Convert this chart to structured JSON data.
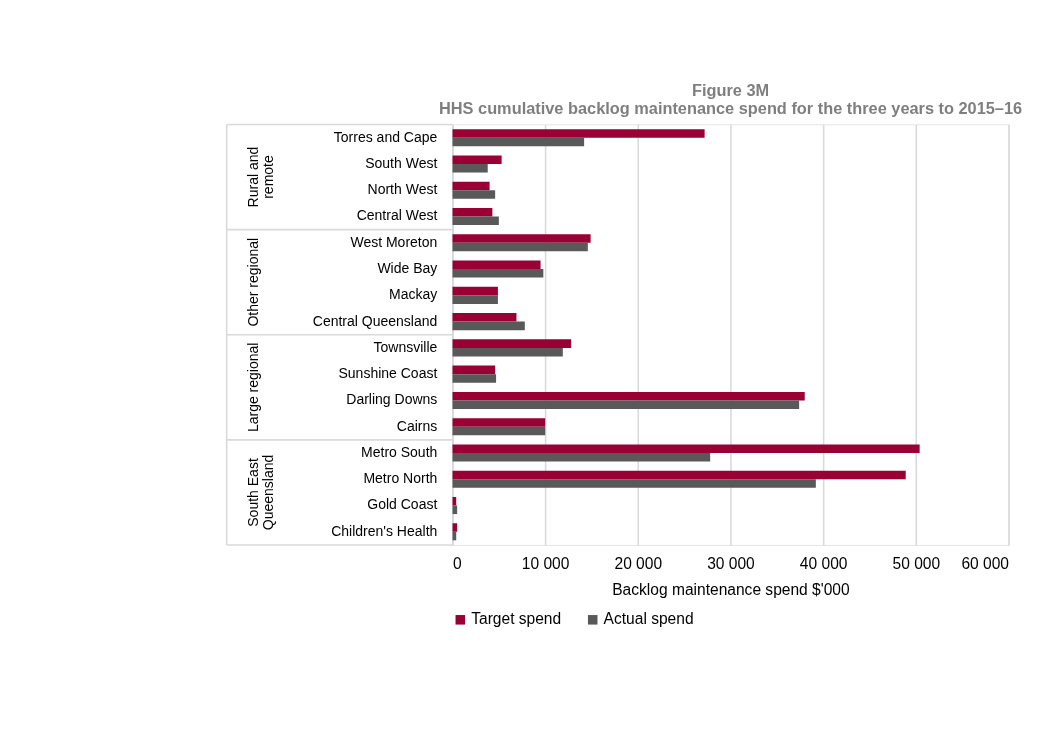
{
  "chart_data": {
    "type": "bar",
    "orientation": "horizontal",
    "title": "Figure 3M",
    "subtitle": "HHS cumulative backlog maintenance spend for the three years to 2015–16",
    "xlabel": "Backlog maintenance spend $'000",
    "categories": [
      "Torres and Cape",
      "South West",
      "North West",
      "Central West",
      "West Moreton",
      "Wide Bay",
      "Mackay",
      "Central Queensland",
      "Townsville",
      "Sunshine Coast",
      "Darling Downs",
      "Cairns",
      "Metro South",
      "Metro North",
      "Gold Coast",
      "Children's Health"
    ],
    "series": [
      {
        "name": "Target spend",
        "color": "#990033",
        "values": [
          27200,
          5300,
          4000,
          4300,
          14900,
          9500,
          4900,
          6900,
          12800,
          4600,
          38000,
          10000,
          50400,
          48900,
          400,
          500
        ]
      },
      {
        "name": "Actual spend",
        "color": "#595959",
        "values": [
          14200,
          3800,
          4600,
          5000,
          14600,
          9800,
          4900,
          7800,
          11900,
          4700,
          37400,
          10000,
          27800,
          39200,
          500,
          400
        ]
      }
    ],
    "annotations": [
      "Rural and\nremote",
      "Other regional",
      "Large regional",
      "South East\nQueensland"
    ],
    "xlim": [
      0,
      60000
    ],
    "xticks": [
      0,
      {
        "value": 10000,
        "label": "10 000"
      },
      {
        "value": 20000,
        "label": "20 000"
      },
      {
        "value": 30000,
        "label": "30 000"
      },
      {
        "value": 40000,
        "label": "40 000"
      },
      {
        "value": 50000,
        "label": "50 000"
      },
      {
        "value": 60000,
        "label": "60 000"
      }
    ],
    "grid": "x",
    "legend": "bottom"
  }
}
